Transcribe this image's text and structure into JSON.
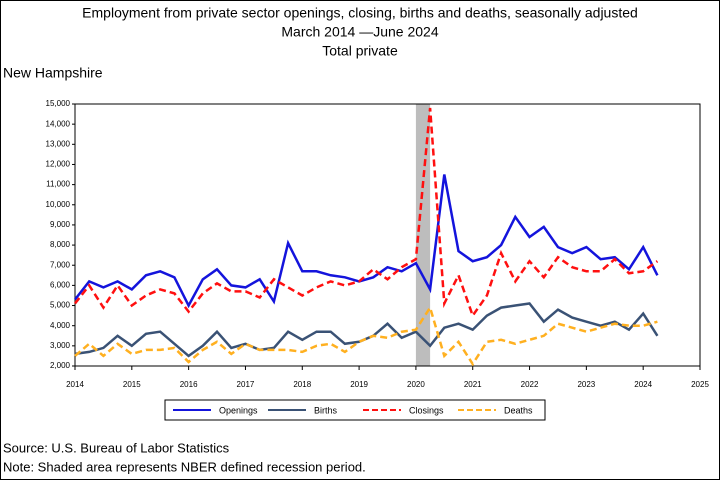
{
  "chart_data": {
    "type": "line",
    "title": "Employment from private sector openings, closing, births and deaths, seasonally adjusted",
    "subtitle": "March 2014 —June 2024",
    "subtitle2": "Total private",
    "region": "New Hampshire",
    "source": "Source: U.S. Bureau of Labor Statistics",
    "note": "Note: Shaded area represents NBER defined recession period.",
    "recession": [
      2020,
      2020.25
    ],
    "x": [
      2014,
      2014.25,
      2014.5,
      2014.75,
      2015,
      2015.25,
      2015.5,
      2015.75,
      2016,
      2016.25,
      2016.5,
      2016.75,
      2017,
      2017.25,
      2017.5,
      2017.75,
      2018,
      2018.25,
      2018.5,
      2018.75,
      2019,
      2019.25,
      2019.5,
      2019.75,
      2020,
      2020.25,
      2020.5,
      2020.75,
      2021,
      2021.25,
      2021.5,
      2021.75,
      2022,
      2022.25,
      2022.5,
      2022.75,
      2023,
      2023.25,
      2023.5,
      2023.75,
      2024,
      2024.25
    ],
    "series": [
      {
        "name": "Openings",
        "color": "#1414dc",
        "dashed": false,
        "values": [
          5300,
          6200,
          5900,
          6200,
          5800,
          6500,
          6700,
          6400,
          5000,
          6300,
          6800,
          6000,
          5900,
          6300,
          5200,
          8100,
          6700,
          6700,
          6500,
          6400,
          6200,
          6400,
          6900,
          6700,
          7100,
          5800,
          11500,
          7700,
          7200,
          7400,
          8000,
          9400,
          8400,
          8900,
          7900,
          7600,
          7900,
          7300,
          7400,
          6800,
          7900,
          6500
        ]
      },
      {
        "name": "Births",
        "color": "#3a5275",
        "dashed": false,
        "values": [
          2600,
          2700,
          2900,
          3500,
          3000,
          3600,
          3700,
          3100,
          2500,
          3000,
          3700,
          2900,
          3100,
          2800,
          2900,
          3700,
          3300,
          3700,
          3700,
          3100,
          3200,
          3500,
          4100,
          3400,
          3700,
          3000,
          3900,
          4100,
          3800,
          4500,
          4900,
          5000,
          5100,
          4200,
          4800,
          4400,
          4200,
          4000,
          4200,
          3800,
          4600,
          3500
        ]
      },
      {
        "name": "Closings",
        "color": "#ff1010",
        "dashed": true,
        "values": [
          5100,
          6000,
          4900,
          6000,
          5000,
          5500,
          5800,
          5600,
          4700,
          5600,
          6100,
          5700,
          5700,
          5400,
          6300,
          5900,
          5500,
          5900,
          6200,
          6000,
          6200,
          6800,
          6300,
          6900,
          7300,
          14800,
          5100,
          6500,
          4500,
          5500,
          7600,
          6200,
          7200,
          6400,
          7400,
          6900,
          6700,
          6700,
          7300,
          6600,
          6700,
          7200
        ]
      },
      {
        "name": "Deaths",
        "color": "#ffb020",
        "dashed": true,
        "values": [
          2500,
          3100,
          2500,
          3100,
          2600,
          2800,
          2800,
          2900,
          2200,
          2800,
          3200,
          2600,
          3100,
          2800,
          2800,
          2800,
          2700,
          3000,
          3100,
          2700,
          3200,
          3500,
          3400,
          3700,
          3800,
          4900,
          2500,
          3200,
          2100,
          3200,
          3300,
          3100,
          3300,
          3500,
          4100,
          3900,
          3700,
          3900,
          4100,
          4000,
          4000,
          4200
        ]
      }
    ],
    "xlim": [
      2014,
      2025
    ],
    "xticks": [
      2014,
      2015,
      2016,
      2017,
      2018,
      2019,
      2020,
      2021,
      2022,
      2023,
      2024,
      2025
    ],
    "ylim": [
      2000,
      15000
    ],
    "yticks": [
      {
        "value": 2000,
        "label": "2,000"
      },
      {
        "value": 3000,
        "label": "3,000"
      },
      {
        "value": 4000,
        "label": "4,000"
      },
      {
        "value": 5000,
        "label": "5,000"
      },
      {
        "value": 6000,
        "label": "6,000"
      },
      {
        "value": 7000,
        "label": "7,000"
      },
      {
        "value": 8000,
        "label": "8,000"
      },
      {
        "value": 9000,
        "label": "9,000"
      },
      {
        "value": 10000,
        "label": "10,000"
      },
      {
        "value": 11000,
        "label": "11,000"
      },
      {
        "value": 12000,
        "label": "12,000"
      },
      {
        "value": 13000,
        "label": "13,000"
      },
      {
        "value": 14000,
        "label": "14,000"
      },
      {
        "value": 15000,
        "label": "15,000"
      }
    ],
    "grid": false,
    "legend": "bottom"
  }
}
